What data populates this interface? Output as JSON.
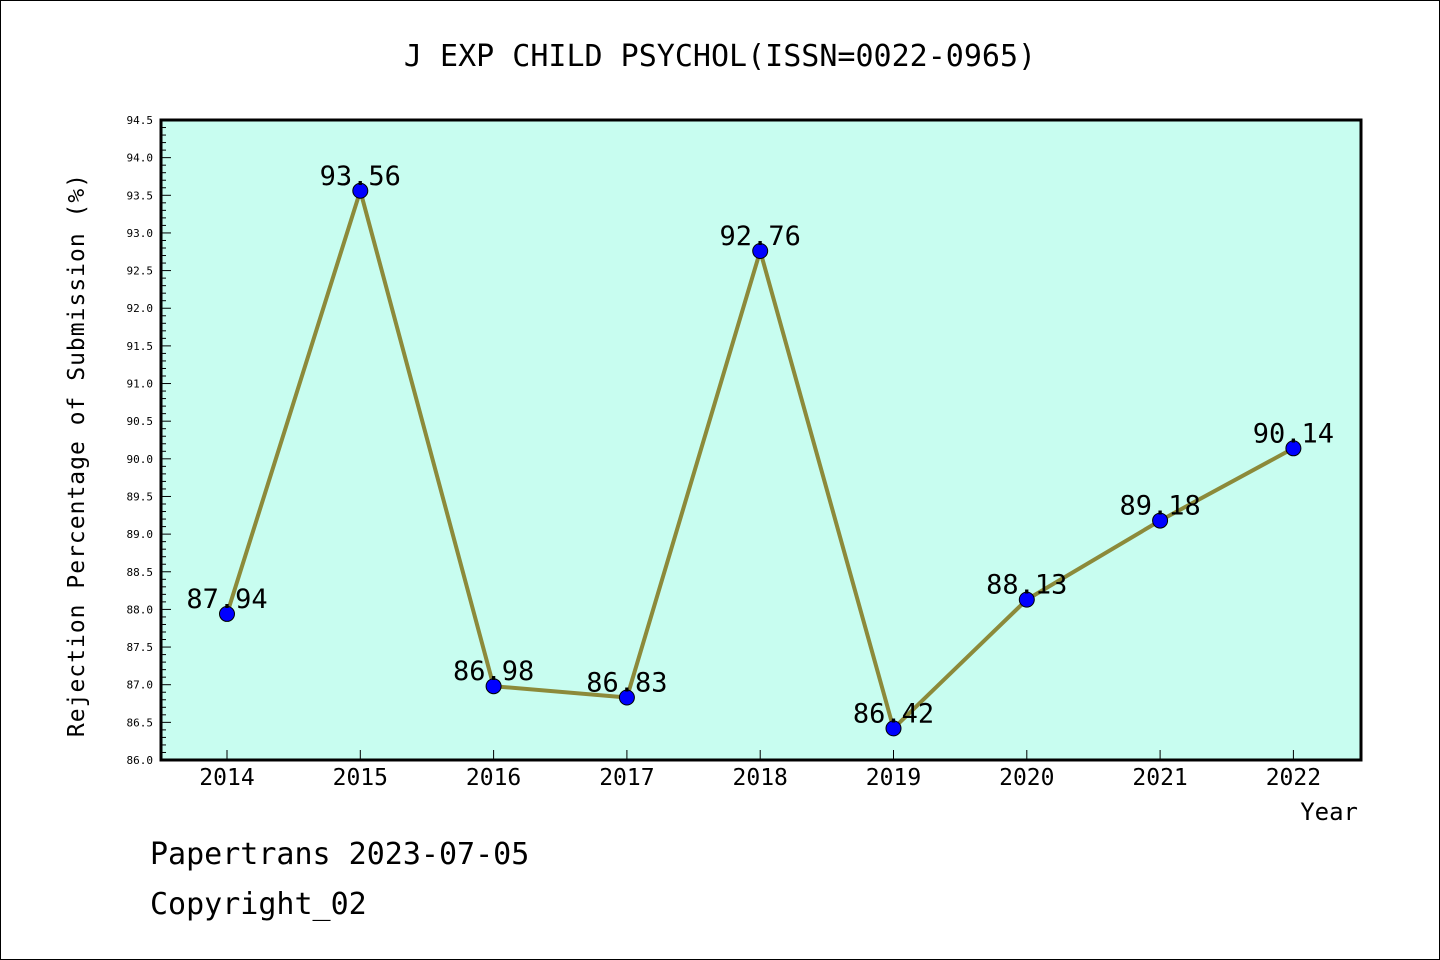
{
  "chart_data": {
    "type": "line",
    "title": "J EXP CHILD PSYCHOL(ISSN=0022-0965)",
    "xlabel": "Year",
    "ylabel": "Rejection Percentage of Submission (%)",
    "categories": [
      "2014",
      "2015",
      "2016",
      "2017",
      "2018",
      "2019",
      "2020",
      "2021",
      "2022"
    ],
    "series": [
      {
        "values": [
          87.94,
          93.56,
          86.98,
          86.83,
          92.76,
          86.42,
          88.13,
          89.18,
          90.14
        ]
      }
    ],
    "data_labels": [
      "87.94",
      "93.56",
      "86.98",
      "86.83",
      "92.76",
      "86.42",
      "88.13",
      "89.18",
      "90.14"
    ],
    "ylim": [
      86.0,
      94.5
    ],
    "yticks": [
      "86.0",
      "86.5",
      "87.0",
      "87.5",
      "88.0",
      "88.5",
      "89.0",
      "89.5",
      "90.0",
      "90.5",
      "91.0",
      "91.5",
      "92.0",
      "92.5",
      "93.0",
      "93.5",
      "94.0",
      "94.5"
    ],
    "grid": false,
    "colors": {
      "plot_background": "#c8fdf0",
      "line": "#8c8a3a",
      "marker": "#0000ff"
    }
  },
  "footer": {
    "line1": "Papertrans 2023-07-05",
    "line2": "Copyright_02"
  }
}
